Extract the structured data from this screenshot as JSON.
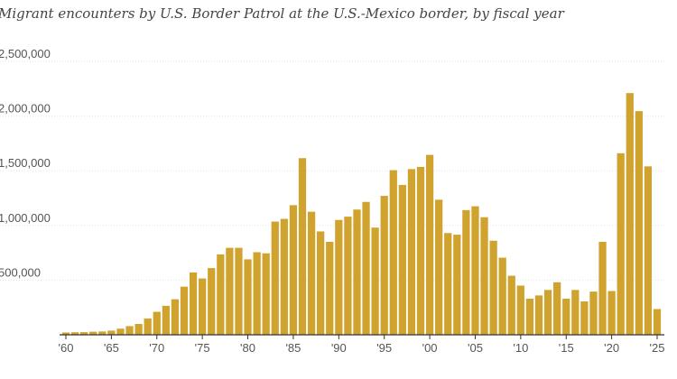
{
  "chart_data": {
    "type": "bar",
    "title": "Migrant encounters by U.S. Border Patrol at the U.S.-Mexico border, by fiscal year",
    "xlabel": "",
    "ylabel": "",
    "ylim": [
      0,
      2500000
    ],
    "y_ticks": [
      500000,
      1000000,
      1500000,
      2000000,
      2500000
    ],
    "y_tick_labels": [
      "500,000",
      "1,000,000",
      "1,500,000",
      "2,000,000",
      "2,500,000"
    ],
    "x_tick_years": [
      1960,
      1965,
      1970,
      1975,
      1980,
      1985,
      1990,
      1995,
      2000,
      2005,
      2010,
      2015,
      2020,
      2025
    ],
    "x_tick_labels": [
      "'60",
      "'65",
      "'70",
      "'75",
      "'80",
      "'85",
      "'90",
      "'95",
      "'00",
      "'05",
      "'10",
      "'15",
      "'20",
      "'25"
    ],
    "grid": true,
    "bar_color": "#cfa32e",
    "categories": [
      1960,
      1961,
      1962,
      1963,
      1964,
      1965,
      1966,
      1967,
      1968,
      1969,
      1970,
      1971,
      1972,
      1973,
      1974,
      1975,
      1976,
      1977,
      1978,
      1979,
      1980,
      1981,
      1982,
      1983,
      1984,
      1985,
      1986,
      1987,
      1988,
      1989,
      1990,
      1991,
      1992,
      1993,
      1994,
      1995,
      1996,
      1997,
      1998,
      1999,
      2000,
      2001,
      2002,
      2003,
      2004,
      2005,
      2006,
      2007,
      2008,
      2009,
      2010,
      2011,
      2012,
      2013,
      2014,
      2015,
      2016,
      2017,
      2018,
      2019,
      2020,
      2021,
      2022,
      2023,
      2024,
      2025
    ],
    "values": [
      21000,
      23000,
      24000,
      28000,
      30000,
      38000,
      56000,
      79000,
      99000,
      149000,
      210000,
      265000,
      325000,
      440000,
      570000,
      515000,
      610000,
      735000,
      795000,
      795000,
      690000,
      755000,
      745000,
      1035000,
      1060000,
      1185000,
      1615000,
      1125000,
      945000,
      850000,
      1050000,
      1080000,
      1145000,
      1215000,
      980000,
      1270000,
      1505000,
      1370000,
      1515000,
      1535000,
      1645000,
      1235000,
      930000,
      915000,
      1140000,
      1175000,
      1075000,
      860000,
      705000,
      540000,
      450000,
      330000,
      360000,
      410000,
      480000,
      330000,
      410000,
      305000,
      395000,
      850000,
      400000,
      1660000,
      2210000,
      2045000,
      1540000,
      235000
    ]
  }
}
